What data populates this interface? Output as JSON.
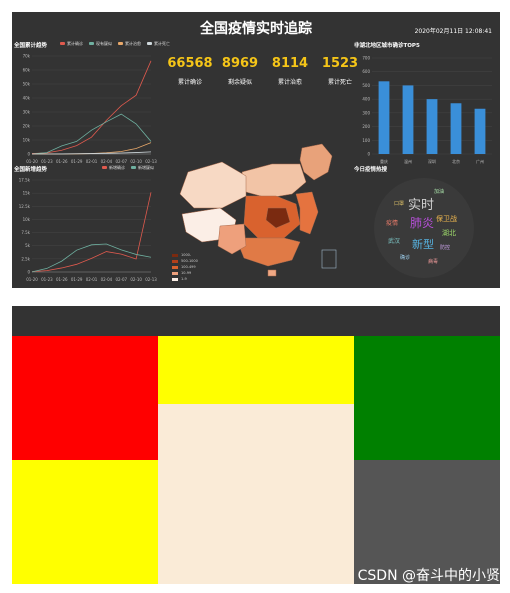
{
  "title": "全国疫情实时追踪",
  "datetime": "2020年02月11日 12:08:41",
  "stats": [
    {
      "value": "66568",
      "label": "累计确诊"
    },
    {
      "value": "8969",
      "label": "剩余疑似"
    },
    {
      "value": "8114",
      "label": "累计治愈"
    },
    {
      "value": "1523",
      "label": "累计死亡"
    }
  ],
  "cumulative_panel": {
    "title": "全国累计趋势",
    "legend": [
      "累计确诊",
      "现有疑似",
      "累计治愈",
      "累计死亡"
    ],
    "legend_colors": [
      "#e05a4e",
      "#6fb0a0",
      "#e8a86a",
      "#cfd8dc"
    ]
  },
  "new_panel": {
    "title": "全国新增趋势",
    "legend": [
      "新增确诊",
      "新增疑似"
    ],
    "legend_colors": [
      "#e05a4e",
      "#6fb0a0"
    ]
  },
  "top5_panel": {
    "title": "非湖北地区城市确诊TOP5"
  },
  "wordcloud_panel": {
    "title": "今日疫情热搜",
    "words": [
      "实时",
      "肺炎",
      "新型",
      "保卫战",
      "湖北",
      "疫情",
      "武汉",
      "口罩",
      "防控",
      "确诊",
      "病毒",
      "加油"
    ]
  },
  "map_legend": [
    "1000-",
    "500-1000",
    "100-499",
    "10-99",
    "1-9"
  ],
  "watermark": "CSDN @奋斗中的小贤",
  "bottom_colors": {
    "red": "#ff0000",
    "yellow": "#ffff00",
    "green": "#008000",
    "cream": "#faebd7",
    "gray": "#555555",
    "frame": "#333333"
  },
  "chart_data": [
    {
      "type": "line",
      "title": "全国累计趋势",
      "x": [
        "01-20",
        "01-23",
        "01-26",
        "01-29",
        "02-01",
        "02-04",
        "02-07",
        "02-10",
        "02-13"
      ],
      "ylim": [
        0,
        70000
      ],
      "yticks": [
        "0",
        "10k",
        "20k",
        "30k",
        "40k",
        "50k",
        "60k",
        "70k"
      ],
      "series": [
        {
          "name": "累计确诊",
          "values": [
            300,
            800,
            2700,
            6000,
            12000,
            24000,
            34500,
            42000,
            66568
          ]
        },
        {
          "name": "现有疑似",
          "values": [
            100,
            1000,
            5800,
            9000,
            17000,
            23000,
            28500,
            21500,
            8969
          ]
        },
        {
          "name": "累计治愈",
          "values": [
            0,
            30,
            50,
            130,
            330,
            900,
            1800,
            3900,
            8114
          ]
        },
        {
          "name": "累计死亡",
          "values": [
            6,
            25,
            56,
            170,
            300,
            490,
            720,
            1010,
            1523
          ]
        }
      ]
    },
    {
      "type": "line",
      "title": "全国新增趋势",
      "x": [
        "01-20",
        "01-23",
        "01-26",
        "01-29",
        "02-01",
        "02-04",
        "02-07",
        "02-10",
        "02-13"
      ],
      "ylim": [
        0,
        17500
      ],
      "yticks": [
        "0",
        "2.5k",
        "5k",
        "7.5k",
        "10k",
        "12.5k",
        "15k",
        "17.5k"
      ],
      "series": [
        {
          "name": "新增确诊",
          "values": [
            77,
            260,
            770,
            1460,
            2590,
            3890,
            3400,
            2480,
            15152
          ]
        },
        {
          "name": "新增疑似",
          "values": [
            27,
            680,
            2070,
            4150,
            5170,
            5330,
            4210,
            3340,
            2800
          ]
        }
      ]
    },
    {
      "type": "bar",
      "title": "非湖北地区城市确诊TOP5",
      "categories": [
        "重庆",
        "温州",
        "深圳",
        "北京",
        "广州"
      ],
      "values": [
        530,
        500,
        400,
        370,
        330
      ],
      "ylim": [
        0,
        700
      ],
      "yticks": [
        "0",
        "100",
        "200",
        "300",
        "400",
        "500",
        "600",
        "700"
      ]
    }
  ]
}
